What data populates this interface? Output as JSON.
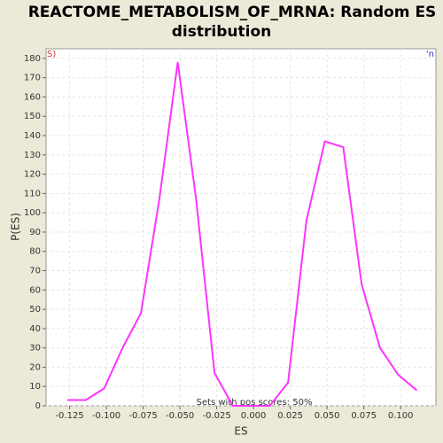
{
  "chart_data": {
    "type": "line",
    "title": [
      "REACTOME_METABOLISM_OF_MRNA: Random ES",
      "distribution"
    ],
    "x_label": "ES",
    "y_label": "P(ES)",
    "annotations": [
      {
        "text": "S)",
        "color": "#cc3333",
        "corner": "top-left"
      },
      {
        "text": "'n",
        "color": "#3333cc",
        "corner": "top-right"
      },
      {
        "text": "Sets with pos scores: 50%",
        "color": "#333333",
        "corner": "bottom-center"
      }
    ],
    "x": [
      -0.1265,
      -0.114,
      -0.1015,
      -0.089,
      -0.0765,
      -0.064,
      -0.0515,
      -0.039,
      -0.0265,
      -0.014,
      -0.0015,
      0.011,
      0.0235,
      0.036,
      0.0485,
      0.061,
      0.0735,
      0.086,
      0.0985,
      0.111
    ],
    "series": [
      {
        "color": "#ff33ff",
        "values": [
          3,
          3,
          9,
          30,
          48,
          107,
          178,
          107,
          17,
          0,
          0,
          0,
          12,
          96,
          137,
          134,
          63,
          30,
          16,
          8
        ]
      }
    ],
    "xlim": [
      -0.141,
      0.124
    ],
    "ylim": [
      0,
      185
    ],
    "xticks": [
      {
        "value": -0.125,
        "label": "-0.125"
      },
      {
        "value": -0.1,
        "label": "-0.100"
      },
      {
        "value": -0.075,
        "label": "-0.075"
      },
      {
        "value": -0.05,
        "label": "-0.050"
      },
      {
        "value": -0.025,
        "label": "-0.025"
      },
      {
        "value": 0,
        "label": "0.000"
      },
      {
        "value": 0.025,
        "label": "0.025"
      },
      {
        "value": 0.05,
        "label": "0.050"
      },
      {
        "value": 0.075,
        "label": "0.075"
      },
      {
        "value": 0.1,
        "label": "0.100"
      }
    ],
    "yticks": [
      0,
      10,
      20,
      30,
      40,
      50,
      60,
      70,
      80,
      90,
      100,
      110,
      120,
      130,
      140,
      150,
      160,
      170,
      180
    ],
    "grid": true
  }
}
